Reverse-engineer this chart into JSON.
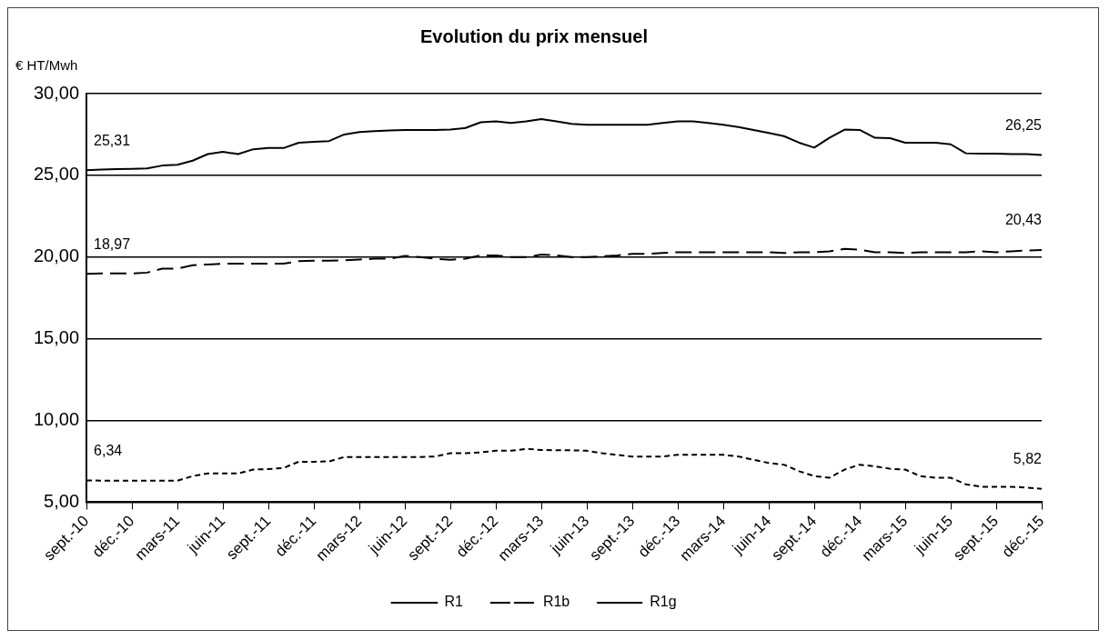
{
  "chart_data": {
    "type": "line",
    "title": "Evolution du prix mensuel",
    "ylabel": "€ HT/Mwh",
    "categories": [
      "sept.-10",
      null,
      null,
      "déc.-10",
      null,
      null,
      "mars-11",
      null,
      null,
      "juin-11",
      null,
      null,
      "sept.-11",
      null,
      null,
      "déc.-11",
      null,
      null,
      "mars-12",
      null,
      null,
      "juin-12",
      null,
      null,
      "sept.-12",
      null,
      null,
      "déc.-12",
      null,
      null,
      "mars-13",
      null,
      null,
      "juin-13",
      null,
      null,
      "sept.-13",
      null,
      null,
      "déc.-13",
      null,
      null,
      "mars-14",
      null,
      null,
      "juin-14",
      null,
      null,
      "sept.-14",
      null,
      null,
      "déc.-14",
      null,
      null,
      "mars-15",
      null,
      null,
      "juin-15",
      null,
      null,
      "sept.-15",
      null,
      null,
      "déc.-15"
    ],
    "series": [
      {
        "name": "R1",
        "color": "#000000",
        "line_style": "solid",
        "values": [
          25.31,
          25.35,
          25.38,
          25.4,
          25.42,
          25.6,
          25.65,
          25.9,
          26.3,
          26.44,
          26.3,
          26.6,
          26.67,
          26.67,
          27.0,
          27.05,
          27.1,
          27.5,
          27.65,
          27.7,
          27.75,
          27.78,
          27.78,
          27.78,
          27.8,
          27.9,
          28.25,
          28.3,
          28.2,
          28.3,
          28.44,
          28.3,
          28.15,
          28.1,
          28.1,
          28.1,
          28.1,
          28.1,
          28.2,
          28.3,
          28.3,
          28.2,
          28.1,
          27.95,
          27.78,
          27.6,
          27.4,
          27.0,
          26.7,
          27.3,
          27.8,
          27.78,
          27.3,
          27.27,
          27.0,
          27.0,
          27.0,
          26.9,
          26.35,
          26.33,
          26.33,
          26.3,
          26.3,
          26.25
        ]
      },
      {
        "name": "R1b",
        "color": "#000000",
        "line_style": "dashed",
        "values": [
          18.97,
          19.0,
          19.0,
          19.0,
          19.05,
          19.29,
          19.3,
          19.5,
          19.55,
          19.6,
          19.6,
          19.6,
          19.6,
          19.6,
          19.75,
          19.78,
          19.78,
          19.8,
          19.85,
          19.9,
          19.9,
          20.07,
          20.0,
          19.9,
          19.84,
          19.9,
          20.1,
          20.1,
          20.0,
          20.0,
          20.15,
          20.1,
          20.0,
          20.0,
          20.05,
          20.1,
          20.2,
          20.2,
          20.25,
          20.3,
          20.3,
          20.3,
          20.3,
          20.3,
          20.3,
          20.3,
          20.25,
          20.3,
          20.3,
          20.35,
          20.5,
          20.45,
          20.3,
          20.3,
          20.25,
          20.3,
          20.3,
          20.3,
          20.3,
          20.35,
          20.3,
          20.35,
          20.4,
          20.43
        ]
      },
      {
        "name": "R1g",
        "color": "#000000",
        "line_style": "dotted",
        "values": [
          6.34,
          6.32,
          6.32,
          6.32,
          6.32,
          6.32,
          6.32,
          6.6,
          6.76,
          6.76,
          6.76,
          7.0,
          7.03,
          7.1,
          7.48,
          7.48,
          7.5,
          7.77,
          7.77,
          7.77,
          7.77,
          7.77,
          7.77,
          7.8,
          8.0,
          8.0,
          8.05,
          8.15,
          8.15,
          8.27,
          8.2,
          8.18,
          8.18,
          8.15,
          8.0,
          7.9,
          7.8,
          7.8,
          7.8,
          7.9,
          7.9,
          7.9,
          7.9,
          7.8,
          7.6,
          7.4,
          7.3,
          6.9,
          6.6,
          6.5,
          7.0,
          7.3,
          7.2,
          7.05,
          7.0,
          6.6,
          6.5,
          6.5,
          6.1,
          5.95,
          5.95,
          5.95,
          5.9,
          5.82
        ]
      }
    ],
    "ylim": [
      5,
      30
    ],
    "yticks": [
      {
        "value": 5,
        "label": "5,00"
      },
      {
        "value": 10,
        "label": "10,00"
      },
      {
        "value": 15,
        "label": "15,00"
      },
      {
        "value": 20,
        "label": "20,00"
      },
      {
        "value": 25,
        "label": "25,00"
      },
      {
        "value": 30,
        "label": "30,00"
      }
    ],
    "grid": "y",
    "legend": "bottom",
    "marker": "none",
    "annotations": [
      {
        "text": "25,31",
        "x": "sept.-10",
        "y": 25.31
      },
      {
        "text": "18,97",
        "x": "sept.-10",
        "y": 18.97
      },
      {
        "text": "6,34",
        "x": "sept.-10",
        "y": 6.34
      },
      {
        "text": "26,25",
        "x": "déc.-15",
        "y": 26.25
      },
      {
        "text": "20,43",
        "x": "déc.-15",
        "y": 20.43
      },
      {
        "text": "5,82",
        "x": "déc.-15",
        "y": 5.82
      }
    ]
  }
}
